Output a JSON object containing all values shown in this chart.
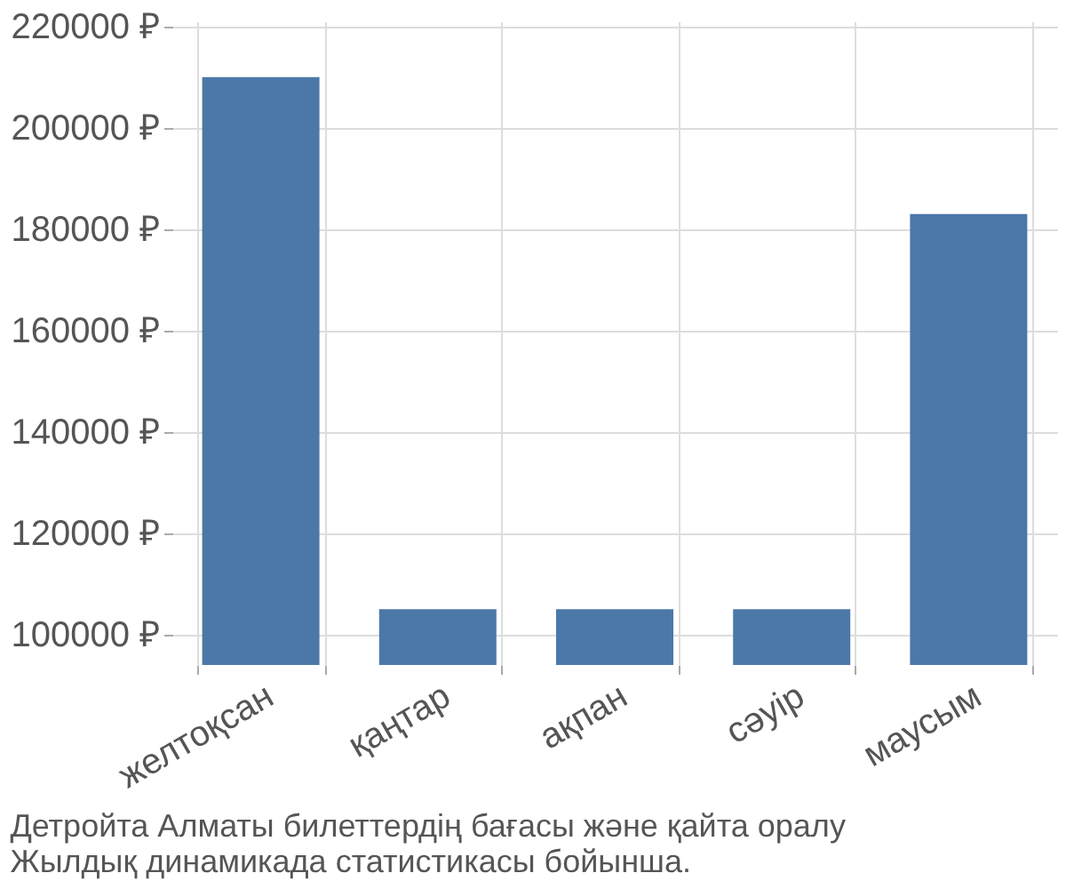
{
  "chart_data": {
    "type": "bar",
    "categories": [
      "желтоқсан",
      "қаңтар",
      "ақпан",
      "сәуір",
      "маусым"
    ],
    "values": [
      210000,
      105000,
      105000,
      105000,
      183000
    ],
    "color": "#4c78a8",
    "ylim": [
      94000,
      221000
    ],
    "yticks": [
      {
        "value": 100000,
        "label": "100000 ₽"
      },
      {
        "value": 120000,
        "label": "120000 ₽"
      },
      {
        "value": 140000,
        "label": "140000 ₽"
      },
      {
        "value": 160000,
        "label": "160000 ₽"
      },
      {
        "value": 180000,
        "label": "180000 ₽"
      },
      {
        "value": 200000,
        "label": "200000 ₽"
      },
      {
        "value": 220000,
        "label": "220000 ₽"
      }
    ],
    "grid": true,
    "annotations": [
      "Детройта Алматы билеттердің бағасы және қайта оралу",
      "Жылдық динамикада статистикасы бойынша."
    ]
  }
}
